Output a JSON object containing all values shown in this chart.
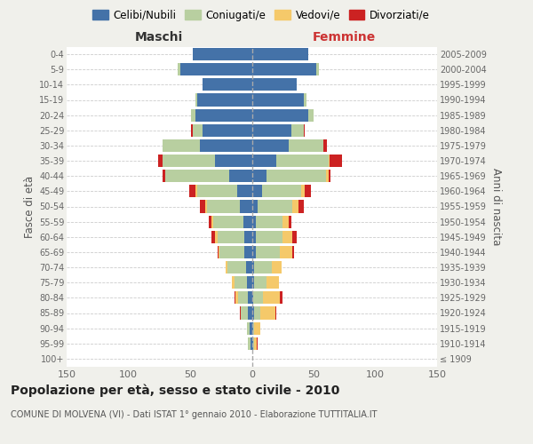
{
  "age_groups": [
    "100+",
    "95-99",
    "90-94",
    "85-89",
    "80-84",
    "75-79",
    "70-74",
    "65-69",
    "60-64",
    "55-59",
    "50-54",
    "45-49",
    "40-44",
    "35-39",
    "30-34",
    "25-29",
    "20-24",
    "15-19",
    "10-14",
    "5-9",
    "0-4"
  ],
  "birth_years": [
    "≤ 1909",
    "1910-1914",
    "1915-1919",
    "1920-1924",
    "1925-1929",
    "1930-1934",
    "1935-1939",
    "1940-1944",
    "1945-1949",
    "1950-1954",
    "1955-1959",
    "1960-1964",
    "1965-1969",
    "1970-1974",
    "1975-1979",
    "1980-1984",
    "1985-1989",
    "1990-1994",
    "1995-1999",
    "2000-2004",
    "2005-2009"
  ],
  "colors": {
    "celibi": "#4472a8",
    "coniugati": "#b8cfa0",
    "vedovi": "#f5c96a",
    "divorziati": "#cc2222"
  },
  "maschi": {
    "celibi": [
      0,
      1,
      2,
      3,
      3,
      4,
      5,
      6,
      6,
      7,
      10,
      12,
      18,
      30,
      42,
      40,
      46,
      44,
      40,
      58,
      48
    ],
    "coniugati": [
      0,
      2,
      2,
      6,
      8,
      10,
      15,
      20,
      22,
      24,
      26,
      32,
      52,
      42,
      30,
      8,
      3,
      2,
      0,
      2,
      0
    ],
    "vedovi": [
      0,
      0,
      0,
      0,
      2,
      2,
      1,
      1,
      2,
      2,
      2,
      2,
      0,
      0,
      0,
      0,
      0,
      0,
      0,
      0,
      0
    ],
    "divorziati": [
      0,
      0,
      0,
      1,
      1,
      0,
      0,
      1,
      3,
      2,
      4,
      5,
      2,
      4,
      0,
      1,
      0,
      0,
      0,
      0,
      0
    ]
  },
  "femmine": {
    "celibi": [
      0,
      1,
      1,
      2,
      1,
      2,
      2,
      3,
      3,
      3,
      5,
      8,
      12,
      20,
      30,
      32,
      46,
      42,
      36,
      52,
      46
    ],
    "coniugati": [
      0,
      1,
      1,
      5,
      8,
      10,
      14,
      20,
      22,
      22,
      28,
      32,
      48,
      42,
      28,
      10,
      4,
      2,
      0,
      2,
      0
    ],
    "vedovi": [
      0,
      2,
      5,
      12,
      14,
      10,
      8,
      10,
      8,
      5,
      5,
      3,
      2,
      1,
      0,
      0,
      0,
      0,
      0,
      0,
      0
    ],
    "divorziati": [
      0,
      1,
      0,
      1,
      2,
      0,
      0,
      1,
      3,
      2,
      4,
      5,
      2,
      10,
      3,
      1,
      0,
      0,
      0,
      0,
      0
    ]
  },
  "xlim": 150,
  "title": "Popolazione per età, sesso e stato civile - 2010",
  "subtitle": "COMUNE DI MOLVENA (VI) - Dati ISTAT 1° gennaio 2010 - Elaborazione TUTTITALIA.IT",
  "ylabel_left": "Fasce di età",
  "ylabel_right": "Anni di nascita",
  "xlabel_maschi": "Maschi",
  "xlabel_femmine": "Femmine",
  "legend_labels": [
    "Celibi/Nubili",
    "Coniugati/e",
    "Vedovi/e",
    "Divorziati/e"
  ],
  "bg_color": "#f0f0eb",
  "plot_bg": "#ffffff"
}
